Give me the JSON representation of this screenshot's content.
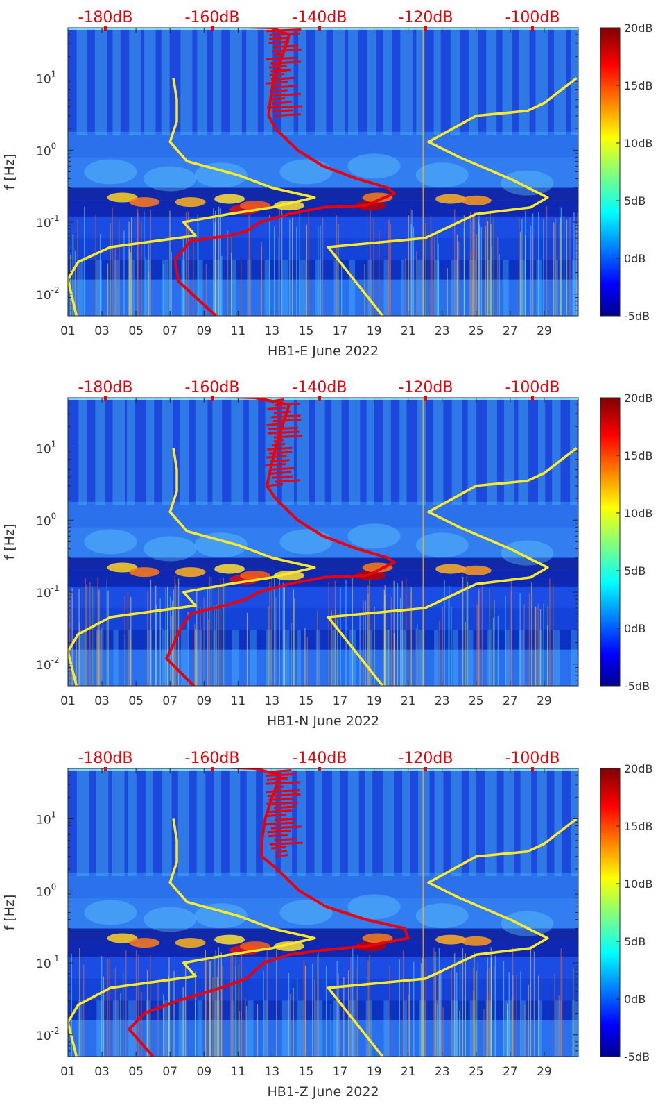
{
  "chart_data": [
    {
      "type": "heatmap",
      "title": "",
      "xlabel": "HB1-E June 2022",
      "ylabel": "f [Hz]",
      "x_tick_labels": [
        "01",
        "03",
        "05",
        "07",
        "09",
        "11",
        "13",
        "15",
        "17",
        "19",
        "21",
        "23",
        "25",
        "27",
        "29"
      ],
      "x_ticks": [
        1,
        3,
        5,
        7,
        9,
        11,
        13,
        15,
        17,
        19,
        21,
        23,
        25,
        27,
        29
      ],
      "xlim": [
        1,
        31
      ],
      "y_scale": "log",
      "ylim": [
        0.005,
        50
      ],
      "y_ticks": [
        0.01,
        0.1,
        1,
        10
      ],
      "y_tick_labels": [
        {
          "base": "10",
          "exp": "-2"
        },
        {
          "base": "10",
          "exp": "-1"
        },
        {
          "base": "10",
          "exp": "0"
        },
        {
          "base": "10",
          "exp": "1"
        }
      ],
      "top_axis_labels": [
        "-180dB",
        "-160dB",
        "-140dB",
        "-120dB",
        "-100dB"
      ],
      "colorbar": {
        "labels": [
          "20dB",
          "15dB",
          "10dB",
          "5dB",
          "0dB",
          "-5dB"
        ],
        "range": [
          -5,
          20
        ],
        "colormap": "jet"
      },
      "series": [
        {
          "color": "#ffea2a",
          "points": [
            [
              1.5,
              0.005
            ],
            [
              1.0,
              0.016
            ],
            [
              1.6,
              0.028
            ],
            [
              3.5,
              0.045
            ],
            [
              8.5,
              0.065
            ],
            [
              7.8,
              0.1
            ],
            [
              10.5,
              0.13
            ],
            [
              13,
              0.16
            ],
            [
              15.5,
              0.22
            ],
            [
              13,
              0.3
            ],
            [
              11,
              0.45
            ],
            [
              8,
              0.7
            ],
            [
              7,
              1.3
            ],
            [
              7.4,
              2.5
            ],
            [
              7.4,
              5
            ],
            [
              7.2,
              10
            ]
          ]
        },
        {
          "color": "#ffea2a",
          "points": [
            [
              19.5,
              0.005
            ],
            [
              16.3,
              0.045
            ],
            [
              22,
              0.06
            ],
            [
              25,
              0.13
            ],
            [
              28.2,
              0.16
            ],
            [
              29.2,
              0.22
            ],
            [
              27,
              0.4
            ],
            [
              24,
              0.8
            ],
            [
              22.2,
              1.3
            ],
            [
              25,
              3
            ],
            [
              28,
              3.5
            ],
            [
              29,
              4.5
            ],
            [
              30.9,
              10
            ]
          ]
        },
        {
          "color": "#e8000b",
          "points": [
            [
              9.7,
              0.005
            ],
            [
              7.5,
              0.015
            ],
            [
              7.3,
              0.03
            ],
            [
              8.2,
              0.055
            ],
            [
              10.5,
              0.065
            ],
            [
              11.5,
              0.075
            ],
            [
              12.3,
              0.1
            ],
            [
              14,
              0.13
            ],
            [
              16,
              0.16
            ],
            [
              18.5,
              0.17
            ],
            [
              20.2,
              0.25
            ],
            [
              19.8,
              0.3
            ],
            [
              18,
              0.4
            ],
            [
              16,
              0.6
            ],
            [
              14.5,
              1
            ],
            [
              13.2,
              2
            ],
            [
              12.8,
              3
            ],
            [
              12.9,
              5
            ],
            [
              13.1,
              10
            ],
            [
              13.6,
              20
            ],
            [
              14,
              40
            ],
            [
              13,
              50
            ],
            [
              10.5,
              52
            ]
          ]
        }
      ]
    },
    {
      "type": "heatmap",
      "title": "",
      "xlabel": "HB1-N June 2022",
      "ylabel": "f [Hz]",
      "x_tick_labels": [
        "01",
        "03",
        "05",
        "07",
        "09",
        "11",
        "13",
        "15",
        "17",
        "19",
        "21",
        "23",
        "25",
        "27",
        "29"
      ],
      "x_ticks": [
        1,
        3,
        5,
        7,
        9,
        11,
        13,
        15,
        17,
        19,
        21,
        23,
        25,
        27,
        29
      ],
      "xlim": [
        1,
        31
      ],
      "y_scale": "log",
      "ylim": [
        0.005,
        50
      ],
      "y_ticks": [
        0.01,
        0.1,
        1,
        10
      ],
      "y_tick_labels": [
        {
          "base": "10",
          "exp": "-2"
        },
        {
          "base": "10",
          "exp": "-1"
        },
        {
          "base": "10",
          "exp": "0"
        },
        {
          "base": "10",
          "exp": "1"
        }
      ],
      "top_axis_labels": [
        "-180dB",
        "-160dB",
        "-140dB",
        "-120dB",
        "-100dB"
      ],
      "colorbar": {
        "labels": [
          "20dB",
          "15dB",
          "10dB",
          "5dB",
          "0dB",
          "-5dB"
        ],
        "range": [
          -5,
          20
        ],
        "colormap": "jet"
      },
      "series": [
        {
          "color": "#ffea2a",
          "points": [
            [
              1.5,
              0.005
            ],
            [
              1.0,
              0.015
            ],
            [
              1.6,
              0.026
            ],
            [
              3.5,
              0.045
            ],
            [
              8.5,
              0.065
            ],
            [
              7.8,
              0.1
            ],
            [
              10.5,
              0.13
            ],
            [
              13,
              0.16
            ],
            [
              15.5,
              0.22
            ],
            [
              13,
              0.3
            ],
            [
              11,
              0.45
            ],
            [
              8,
              0.7
            ],
            [
              7,
              1.3
            ],
            [
              7.4,
              2.5
            ],
            [
              7.4,
              5
            ],
            [
              7.2,
              10
            ]
          ]
        },
        {
          "color": "#ffea2a",
          "points": [
            [
              19.5,
              0.005
            ],
            [
              16.3,
              0.045
            ],
            [
              22,
              0.06
            ],
            [
              25,
              0.13
            ],
            [
              28.2,
              0.16
            ],
            [
              29.2,
              0.22
            ],
            [
              27,
              0.4
            ],
            [
              24,
              0.8
            ],
            [
              22.2,
              1.3
            ],
            [
              25,
              3
            ],
            [
              28,
              3.5
            ],
            [
              29,
              4.5
            ],
            [
              30.9,
              10
            ]
          ]
        },
        {
          "color": "#e8000b",
          "points": [
            [
              8.4,
              0.005
            ],
            [
              6.8,
              0.012
            ],
            [
              7.6,
              0.03
            ],
            [
              8.2,
              0.05
            ],
            [
              10.2,
              0.065
            ],
            [
              11.5,
              0.08
            ],
            [
              12.2,
              0.1
            ],
            [
              14,
              0.13
            ],
            [
              16,
              0.16
            ],
            [
              18.6,
              0.17
            ],
            [
              20.2,
              0.26
            ],
            [
              19.8,
              0.3
            ],
            [
              18,
              0.4
            ],
            [
              16,
              0.6
            ],
            [
              14.5,
              1
            ],
            [
              13.2,
              2
            ],
            [
              12.7,
              3
            ],
            [
              12.9,
              5
            ],
            [
              13.2,
              10
            ],
            [
              13.6,
              20
            ],
            [
              14,
              40
            ],
            [
              12,
              50
            ],
            [
              8.8,
              53
            ]
          ]
        }
      ]
    },
    {
      "type": "heatmap",
      "title": "",
      "xlabel": "HB1-Z June 2022",
      "ylabel": "f [Hz]",
      "x_tick_labels": [
        "01",
        "03",
        "05",
        "07",
        "09",
        "11",
        "13",
        "15",
        "17",
        "19",
        "21",
        "23",
        "25",
        "27",
        "29"
      ],
      "x_ticks": [
        1,
        3,
        5,
        7,
        9,
        11,
        13,
        15,
        17,
        19,
        21,
        23,
        25,
        27,
        29
      ],
      "xlim": [
        1,
        31
      ],
      "y_scale": "log",
      "ylim": [
        0.005,
        50
      ],
      "y_ticks": [
        0.01,
        0.1,
        1,
        10
      ],
      "y_tick_labels": [
        {
          "base": "10",
          "exp": "-2"
        },
        {
          "base": "10",
          "exp": "-1"
        },
        {
          "base": "10",
          "exp": "0"
        },
        {
          "base": "10",
          "exp": "1"
        }
      ],
      "top_axis_labels": [
        "-180dB",
        "-160dB",
        "-140dB",
        "-120dB",
        "-100dB"
      ],
      "colorbar": {
        "labels": [
          "20dB",
          "15dB",
          "10dB",
          "5dB",
          "0dB",
          "-5dB"
        ],
        "range": [
          -5,
          20
        ],
        "colormap": "jet"
      },
      "series": [
        {
          "color": "#ffea2a",
          "points": [
            [
              1.5,
              0.005
            ],
            [
              1.0,
              0.015
            ],
            [
              1.6,
              0.026
            ],
            [
              3.5,
              0.045
            ],
            [
              8.5,
              0.065
            ],
            [
              7.8,
              0.1
            ],
            [
              10.5,
              0.13
            ],
            [
              13,
              0.16
            ],
            [
              15.5,
              0.22
            ],
            [
              13,
              0.3
            ],
            [
              11,
              0.45
            ],
            [
              8,
              0.7
            ],
            [
              7,
              1.3
            ],
            [
              7.4,
              2.5
            ],
            [
              7.4,
              5
            ],
            [
              7.2,
              10
            ]
          ]
        },
        {
          "color": "#ffea2a",
          "points": [
            [
              19.5,
              0.005
            ],
            [
              16.3,
              0.045
            ],
            [
              22,
              0.06
            ],
            [
              25,
              0.13
            ],
            [
              28.2,
              0.16
            ],
            [
              29.2,
              0.22
            ],
            [
              27,
              0.4
            ],
            [
              24,
              0.8
            ],
            [
              22.2,
              1.3
            ],
            [
              25,
              3
            ],
            [
              28,
              3.5
            ],
            [
              29,
              4.5
            ],
            [
              30.9,
              10
            ]
          ]
        },
        {
          "color": "#e8000b",
          "points": [
            [
              6,
              0.005
            ],
            [
              4.6,
              0.012
            ],
            [
              5.5,
              0.02
            ],
            [
              7.5,
              0.03
            ],
            [
              10,
              0.045
            ],
            [
              11.5,
              0.06
            ],
            [
              12.5,
              0.1
            ],
            [
              14,
              0.13
            ],
            [
              16,
              0.15
            ],
            [
              18.5,
              0.17
            ],
            [
              21,
              0.22
            ],
            [
              20.8,
              0.3
            ],
            [
              18.5,
              0.4
            ],
            [
              16.2,
              0.6
            ],
            [
              14.6,
              1
            ],
            [
              13.3,
              2
            ],
            [
              12.4,
              3
            ],
            [
              12.4,
              5
            ],
            [
              12.6,
              10
            ],
            [
              13,
              20
            ],
            [
              13.5,
              40
            ],
            [
              12,
              50
            ],
            [
              9.2,
              53
            ]
          ]
        }
      ]
    }
  ]
}
